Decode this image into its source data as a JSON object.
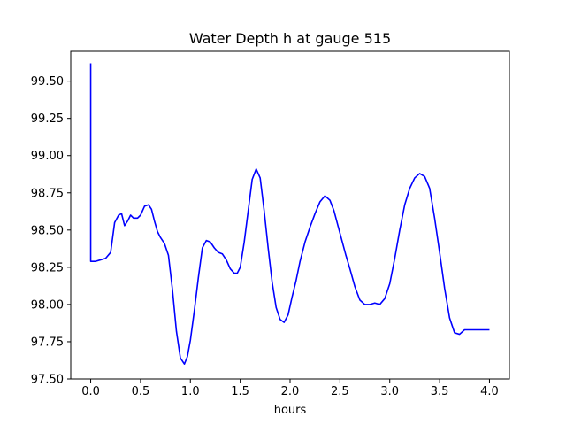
{
  "chart_data": {
    "type": "line",
    "title": "Water Depth h at gauge 515",
    "xlabel": "hours",
    "ylabel": "",
    "xlim": [
      -0.2,
      4.2
    ],
    "ylim": [
      97.5,
      99.7
    ],
    "xticks": [
      0.0,
      0.5,
      1.0,
      1.5,
      2.0,
      2.5,
      3.0,
      3.5,
      4.0
    ],
    "xtick_labels": [
      "0.0",
      "0.5",
      "1.0",
      "1.5",
      "2.0",
      "2.5",
      "3.0",
      "3.5",
      "4.0"
    ],
    "yticks": [
      97.5,
      97.75,
      98.0,
      98.25,
      98.5,
      98.75,
      99.0,
      99.25,
      99.5
    ],
    "ytick_labels": [
      "97.50",
      "97.75",
      "98.00",
      "98.25",
      "98.50",
      "98.75",
      "99.00",
      "99.25",
      "99.50"
    ],
    "grid": false,
    "series": [
      {
        "color": "#0000ff",
        "x": [
          0.0,
          0.0,
          0.05,
          0.1,
          0.15,
          0.2,
          0.24,
          0.28,
          0.31,
          0.34,
          0.37,
          0.4,
          0.43,
          0.47,
          0.5,
          0.54,
          0.58,
          0.61,
          0.64,
          0.67,
          0.7,
          0.74,
          0.78,
          0.82,
          0.86,
          0.9,
          0.94,
          0.97,
          1.0,
          1.04,
          1.08,
          1.12,
          1.16,
          1.2,
          1.24,
          1.28,
          1.32,
          1.36,
          1.4,
          1.44,
          1.47,
          1.5,
          1.54,
          1.58,
          1.62,
          1.66,
          1.7,
          1.74,
          1.78,
          1.82,
          1.86,
          1.9,
          1.94,
          1.98,
          2.02,
          2.06,
          2.1,
          2.15,
          2.2,
          2.25,
          2.3,
          2.35,
          2.4,
          2.44,
          2.48,
          2.52,
          2.56,
          2.6,
          2.65,
          2.7,
          2.75,
          2.8,
          2.85,
          2.9,
          2.95,
          3.0,
          3.05,
          3.1,
          3.15,
          3.2,
          3.25,
          3.3,
          3.35,
          3.4,
          3.45,
          3.5,
          3.55,
          3.6,
          3.65,
          3.7,
          3.75,
          3.8,
          3.85,
          3.9,
          3.95,
          4.0
        ],
        "y": [
          99.62,
          98.29,
          98.29,
          98.3,
          98.31,
          98.35,
          98.55,
          98.6,
          98.61,
          98.53,
          98.56,
          98.6,
          98.58,
          98.58,
          98.6,
          98.66,
          98.67,
          98.64,
          98.56,
          98.49,
          98.45,
          98.41,
          98.33,
          98.1,
          97.82,
          97.64,
          97.6,
          97.65,
          97.76,
          97.96,
          98.18,
          98.38,
          98.43,
          98.42,
          98.38,
          98.35,
          98.34,
          98.3,
          98.24,
          98.21,
          98.21,
          98.25,
          98.42,
          98.63,
          98.84,
          98.91,
          98.85,
          98.63,
          98.38,
          98.15,
          97.98,
          97.9,
          97.88,
          97.93,
          98.05,
          98.16,
          98.29,
          98.42,
          98.52,
          98.61,
          98.69,
          98.73,
          98.7,
          98.63,
          98.53,
          98.43,
          98.33,
          98.24,
          98.12,
          98.03,
          98.0,
          98.0,
          98.01,
          98.0,
          98.04,
          98.14,
          98.31,
          98.5,
          98.67,
          98.78,
          98.85,
          98.88,
          98.86,
          98.78,
          98.58,
          98.35,
          98.11,
          97.91,
          97.81,
          97.8,
          97.83,
          97.83,
          97.83,
          97.83,
          97.83,
          97.83
        ]
      }
    ]
  }
}
